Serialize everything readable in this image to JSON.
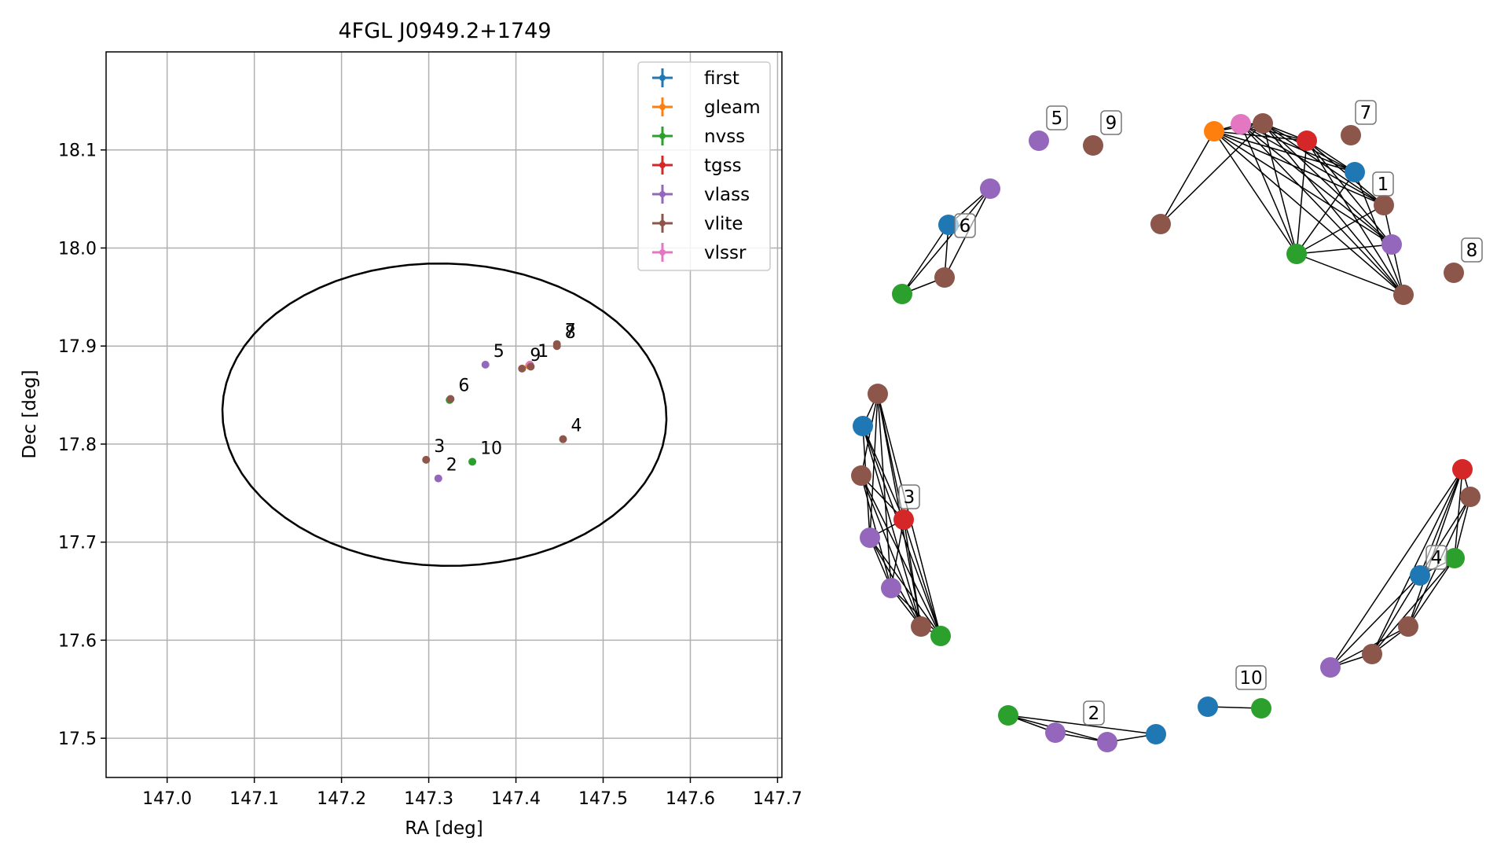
{
  "colors": {
    "first": "#1f77b4",
    "gleam": "#ff7f0e",
    "nvss": "#2ca02c",
    "tgss": "#d62728",
    "vlass": "#9467bd",
    "vlite": "#8c564b",
    "vlssr": "#e377c2"
  },
  "chart_data": [
    {
      "type": "scatter",
      "title": "4FGL J0949.2+1749",
      "xlabel": "RA [deg]",
      "ylabel": "Dec [deg]",
      "xlim": [
        146.93,
        147.705
      ],
      "ylim": [
        17.46,
        18.2
      ],
      "xticks": [
        147.0,
        147.1,
        147.2,
        147.3,
        147.4,
        147.5,
        147.6,
        147.7
      ],
      "xtick_labels": [
        "147.0",
        "147.1",
        "147.2",
        "147.3",
        "147.4",
        "147.5",
        "147.6",
        "147.7"
      ],
      "yticks": [
        17.5,
        17.6,
        17.7,
        17.8,
        17.9,
        18.0,
        18.1
      ],
      "ytick_labels": [
        "17.5",
        "17.6",
        "17.7",
        "17.8",
        "17.9",
        "18.0",
        "18.1"
      ],
      "grid": true,
      "legend_position": "top-right",
      "legend": [
        "first",
        "gleam",
        "nvss",
        "tgss",
        "vlass",
        "vlite",
        "vlssr"
      ],
      "ellipse": {
        "center": [
          147.318,
          17.83
        ],
        "semi_axis_ra": 0.256,
        "semi_axis_dec": 0.155,
        "angle_deg": -6
      },
      "points": [
        {
          "survey": "first",
          "x": 147.416,
          "y": 17.88
        },
        {
          "survey": "nvss",
          "x": 147.416,
          "y": 17.88
        },
        {
          "survey": "tgss",
          "x": 147.416,
          "y": 17.881
        },
        {
          "survey": "gleam",
          "x": 147.415,
          "y": 17.88
        },
        {
          "survey": "vlssr",
          "x": 147.416,
          "y": 17.881
        },
        {
          "survey": "vlite",
          "x": 147.417,
          "y": 17.879
        },
        {
          "survey": "vlass",
          "x": 147.365,
          "y": 17.881
        },
        {
          "survey": "vlite",
          "x": 147.407,
          "y": 17.877
        },
        {
          "survey": "vlite",
          "x": 147.447,
          "y": 17.902
        },
        {
          "survey": "vlite",
          "x": 147.447,
          "y": 17.9
        },
        {
          "survey": "nvss",
          "x": 147.324,
          "y": 17.845
        },
        {
          "survey": "vlite",
          "x": 147.325,
          "y": 17.846
        },
        {
          "survey": "vlite",
          "x": 147.454,
          "y": 17.805
        },
        {
          "survey": "vlite",
          "x": 147.297,
          "y": 17.784
        },
        {
          "survey": "vlass",
          "x": 147.311,
          "y": 17.765
        },
        {
          "survey": "nvss",
          "x": 147.35,
          "y": 17.782
        }
      ],
      "point_labels": [
        {
          "text": "1",
          "x": 147.416,
          "y": 17.881
        },
        {
          "text": "9",
          "x": 147.407,
          "y": 17.877
        },
        {
          "text": "5",
          "x": 147.365,
          "y": 17.881
        },
        {
          "text": "7",
          "x": 147.447,
          "y": 17.902
        },
        {
          "text": "8",
          "x": 147.447,
          "y": 17.9
        },
        {
          "text": "6",
          "x": 147.325,
          "y": 17.846
        },
        {
          "text": "4",
          "x": 147.454,
          "y": 17.805
        },
        {
          "text": "3",
          "x": 147.297,
          "y": 17.784
        },
        {
          "text": "2",
          "x": 147.311,
          "y": 17.765
        },
        {
          "text": "10",
          "x": 147.35,
          "y": 17.782
        }
      ]
    },
    {
      "type": "network",
      "nodes": [
        {
          "id": "n1a",
          "survey": "gleam"
        },
        {
          "id": "n1b",
          "survey": "vlssr"
        },
        {
          "id": "n1c",
          "survey": "vlite"
        },
        {
          "id": "n1d",
          "survey": "tgss"
        },
        {
          "id": "n1e",
          "survey": "first"
        },
        {
          "id": "n1f",
          "survey": "vlite"
        },
        {
          "id": "n1g",
          "survey": "vlass"
        },
        {
          "id": "n1h",
          "survey": "vlite"
        },
        {
          "id": "n1i",
          "survey": "nvss"
        },
        {
          "id": "n1j",
          "survey": "vlite"
        },
        {
          "id": "n5",
          "survey": "vlass"
        },
        {
          "id": "n9",
          "survey": "vlite"
        },
        {
          "id": "n7",
          "survey": "vlite"
        },
        {
          "id": "n8",
          "survey": "vlite"
        },
        {
          "id": "n6a",
          "survey": "vlass"
        },
        {
          "id": "n6b",
          "survey": "first"
        },
        {
          "id": "n6c",
          "survey": "vlite"
        },
        {
          "id": "n6d",
          "survey": "nvss"
        },
        {
          "id": "n3a",
          "survey": "vlite"
        },
        {
          "id": "n3b",
          "survey": "first"
        },
        {
          "id": "n3c",
          "survey": "vlite"
        },
        {
          "id": "n3d",
          "survey": "tgss"
        },
        {
          "id": "n3e",
          "survey": "vlass"
        },
        {
          "id": "n3f",
          "survey": "vlass"
        },
        {
          "id": "n3g",
          "survey": "vlite"
        },
        {
          "id": "n3h",
          "survey": "nvss"
        },
        {
          "id": "n4a",
          "survey": "tgss"
        },
        {
          "id": "n4b",
          "survey": "vlite"
        },
        {
          "id": "n4c",
          "survey": "nvss"
        },
        {
          "id": "n4d",
          "survey": "first"
        },
        {
          "id": "n4e",
          "survey": "vlite"
        },
        {
          "id": "n4f",
          "survey": "vlite"
        },
        {
          "id": "n4g",
          "survey": "vlass"
        },
        {
          "id": "n2a",
          "survey": "nvss"
        },
        {
          "id": "n2b",
          "survey": "vlass"
        },
        {
          "id": "n2c",
          "survey": "vlass"
        },
        {
          "id": "n2d",
          "survey": "first"
        },
        {
          "id": "n10a",
          "survey": "first"
        },
        {
          "id": "n10b",
          "survey": "nvss"
        }
      ],
      "edges": [
        [
          "n1a",
          "n1b"
        ],
        [
          "n1a",
          "n1c"
        ],
        [
          "n1a",
          "n1d"
        ],
        [
          "n1a",
          "n1e"
        ],
        [
          "n1a",
          "n1f"
        ],
        [
          "n1a",
          "n1g"
        ],
        [
          "n1a",
          "n1h"
        ],
        [
          "n1a",
          "n1i"
        ],
        [
          "n1a",
          "n1j"
        ],
        [
          "n1b",
          "n1c"
        ],
        [
          "n1b",
          "n1d"
        ],
        [
          "n1b",
          "n1e"
        ],
        [
          "n1b",
          "n1f"
        ],
        [
          "n1b",
          "n1g"
        ],
        [
          "n1b",
          "n1h"
        ],
        [
          "n1b",
          "n1i"
        ],
        [
          "n1c",
          "n1d"
        ],
        [
          "n1c",
          "n1e"
        ],
        [
          "n1c",
          "n1f"
        ],
        [
          "n1c",
          "n1g"
        ],
        [
          "n1c",
          "n1h"
        ],
        [
          "n1c",
          "n1i"
        ],
        [
          "n1c",
          "n1j"
        ],
        [
          "n1d",
          "n1e"
        ],
        [
          "n1d",
          "n1f"
        ],
        [
          "n1d",
          "n1g"
        ],
        [
          "n1d",
          "n1h"
        ],
        [
          "n1d",
          "n1i"
        ],
        [
          "n1e",
          "n1i"
        ],
        [
          "n1f",
          "n1i"
        ],
        [
          "n1g",
          "n1i"
        ],
        [
          "n1h",
          "n1i"
        ],
        [
          "n1e",
          "n1h"
        ],
        [
          "n1f",
          "n1h"
        ],
        [
          "n6a",
          "n6b"
        ],
        [
          "n6a",
          "n6c"
        ],
        [
          "n6b",
          "n6c"
        ],
        [
          "n6b",
          "n6d"
        ],
        [
          "n6c",
          "n6d"
        ],
        [
          "n6a",
          "n6d"
        ],
        [
          "n3a",
          "n3b"
        ],
        [
          "n3a",
          "n3c"
        ],
        [
          "n3a",
          "n3d"
        ],
        [
          "n3a",
          "n3e"
        ],
        [
          "n3a",
          "n3f"
        ],
        [
          "n3a",
          "n3g"
        ],
        [
          "n3a",
          "n3h"
        ],
        [
          "n3b",
          "n3d"
        ],
        [
          "n3b",
          "n3e"
        ],
        [
          "n3b",
          "n3g"
        ],
        [
          "n3b",
          "n3h"
        ],
        [
          "n3c",
          "n3d"
        ],
        [
          "n3c",
          "n3f"
        ],
        [
          "n3c",
          "n3g"
        ],
        [
          "n3c",
          "n3h"
        ],
        [
          "n3d",
          "n3e"
        ],
        [
          "n3d",
          "n3f"
        ],
        [
          "n3d",
          "n3g"
        ],
        [
          "n3d",
          "n3h"
        ],
        [
          "n3e",
          "n3f"
        ],
        [
          "n3e",
          "n3g"
        ],
        [
          "n3e",
          "n3h"
        ],
        [
          "n3f",
          "n3g"
        ],
        [
          "n3f",
          "n3h"
        ],
        [
          "n3g",
          "n3h"
        ],
        [
          "n4a",
          "n4b"
        ],
        [
          "n4a",
          "n4c"
        ],
        [
          "n4a",
          "n4d"
        ],
        [
          "n4a",
          "n4e"
        ],
        [
          "n4a",
          "n4f"
        ],
        [
          "n4a",
          "n4g"
        ],
        [
          "n4b",
          "n4c"
        ],
        [
          "n4b",
          "n4d"
        ],
        [
          "n4b",
          "n4e"
        ],
        [
          "n4c",
          "n4d"
        ],
        [
          "n4c",
          "n4e"
        ],
        [
          "n4c",
          "n4f"
        ],
        [
          "n4d",
          "n4f"
        ],
        [
          "n4d",
          "n4g"
        ],
        [
          "n4e",
          "n4f"
        ],
        [
          "n4e",
          "n4g"
        ],
        [
          "n4f",
          "n4g"
        ],
        [
          "n2a",
          "n2b"
        ],
        [
          "n2a",
          "n2c"
        ],
        [
          "n2a",
          "n2d"
        ],
        [
          "n2b",
          "n2c"
        ],
        [
          "n2c",
          "n2d"
        ],
        [
          "n10a",
          "n10b"
        ]
      ],
      "group_labels": [
        {
          "text": "1",
          "node": "n1f"
        },
        {
          "text": "5",
          "node": "n5"
        },
        {
          "text": "9",
          "node": "n9"
        },
        {
          "text": "7",
          "node": "n7"
        },
        {
          "text": "8",
          "node": "n8"
        },
        {
          "text": "6",
          "node": "n6b"
        },
        {
          "text": "3",
          "node": "n3d"
        },
        {
          "text": "4",
          "node": "n4d"
        },
        {
          "text": "2",
          "node": "n2c"
        },
        {
          "text": "10",
          "node": "n10b"
        }
      ]
    }
  ]
}
